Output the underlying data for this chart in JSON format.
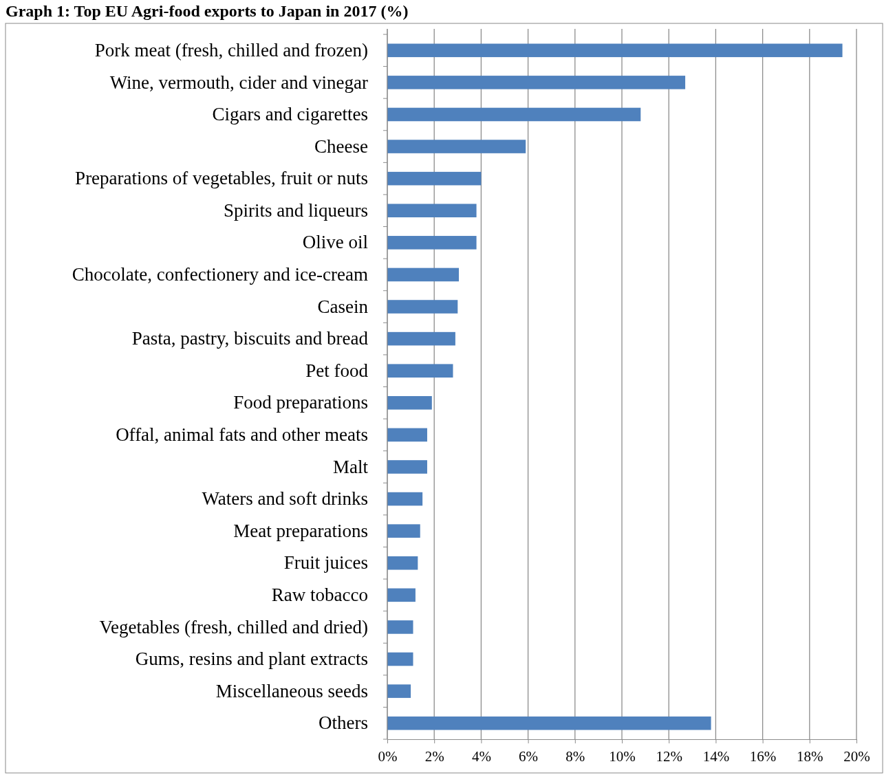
{
  "chart_data": {
    "type": "bar",
    "orientation": "horizontal",
    "title": "Graph 1: Top EU Agri-food exports to Japan in 2017 (%)",
    "categories": [
      "Pork meat (fresh, chilled and frozen)",
      "Wine, vermouth, cider and vinegar",
      "Cigars and cigarettes",
      "Cheese",
      "Preparations of vegetables, fruit or nuts",
      "Spirits and liqueurs",
      "Olive oil",
      "Chocolate, confectionery and ice-cream",
      "Casein",
      "Pasta, pastry, biscuits and bread",
      "Pet food",
      "Food preparations",
      "Offal, animal fats and other meats",
      "Malt",
      "Waters and soft drinks",
      "Meat preparations",
      "Fruit juices",
      "Raw tobacco",
      "Vegetables (fresh, chilled and dried)",
      "Gums, resins and plant extracts",
      "Miscellaneous seeds",
      "Others"
    ],
    "values": [
      19.4,
      12.7,
      10.8,
      5.9,
      4.0,
      3.8,
      3.8,
      3.05,
      3.0,
      2.9,
      2.8,
      1.9,
      1.7,
      1.7,
      1.5,
      1.4,
      1.3,
      1.2,
      1.1,
      1.1,
      1.0,
      13.8
    ],
    "color": "#4f81bd",
    "xlim": [
      0,
      20
    ],
    "xticks": [
      {
        "value": 0,
        "label": "0%"
      },
      {
        "value": 2,
        "label": "2%"
      },
      {
        "value": 4,
        "label": "4%"
      },
      {
        "value": 6,
        "label": "6%"
      },
      {
        "value": 8,
        "label": "8%"
      },
      {
        "value": 10,
        "label": "10%"
      },
      {
        "value": 12,
        "label": "12%"
      },
      {
        "value": 14,
        "label": "14%"
      },
      {
        "value": 16,
        "label": "16%"
      },
      {
        "value": 18,
        "label": "18%"
      },
      {
        "value": 20,
        "label": "20%"
      }
    ],
    "grid": "x"
  }
}
